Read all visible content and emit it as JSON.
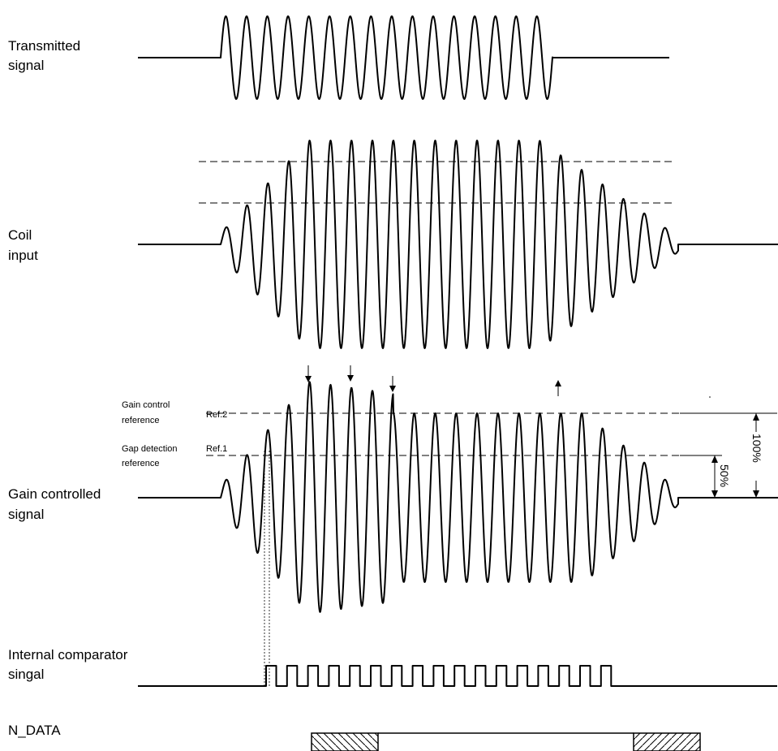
{
  "labels": {
    "transmitted_line1": "Transmitted",
    "transmitted_line2": "signal",
    "coil_line1": "Coil",
    "coil_line2": "input",
    "gain_line1": "Gain controlled",
    "gain_line2": "signal",
    "comparator_line1": "Internal comparator",
    "comparator_line2": "singal",
    "ndata": "N_DATA"
  },
  "references": {
    "gain_control_line1": "Gain control",
    "gain_control_line2": "reference",
    "gain_control_ref": "Ref.2",
    "gap_detection_line1": "Gap detection",
    "gap_detection_line2": "reference",
    "gap_detection_ref": "Ref.1"
  },
  "dimensions": {
    "full": "100%",
    "half": "50%"
  }
}
